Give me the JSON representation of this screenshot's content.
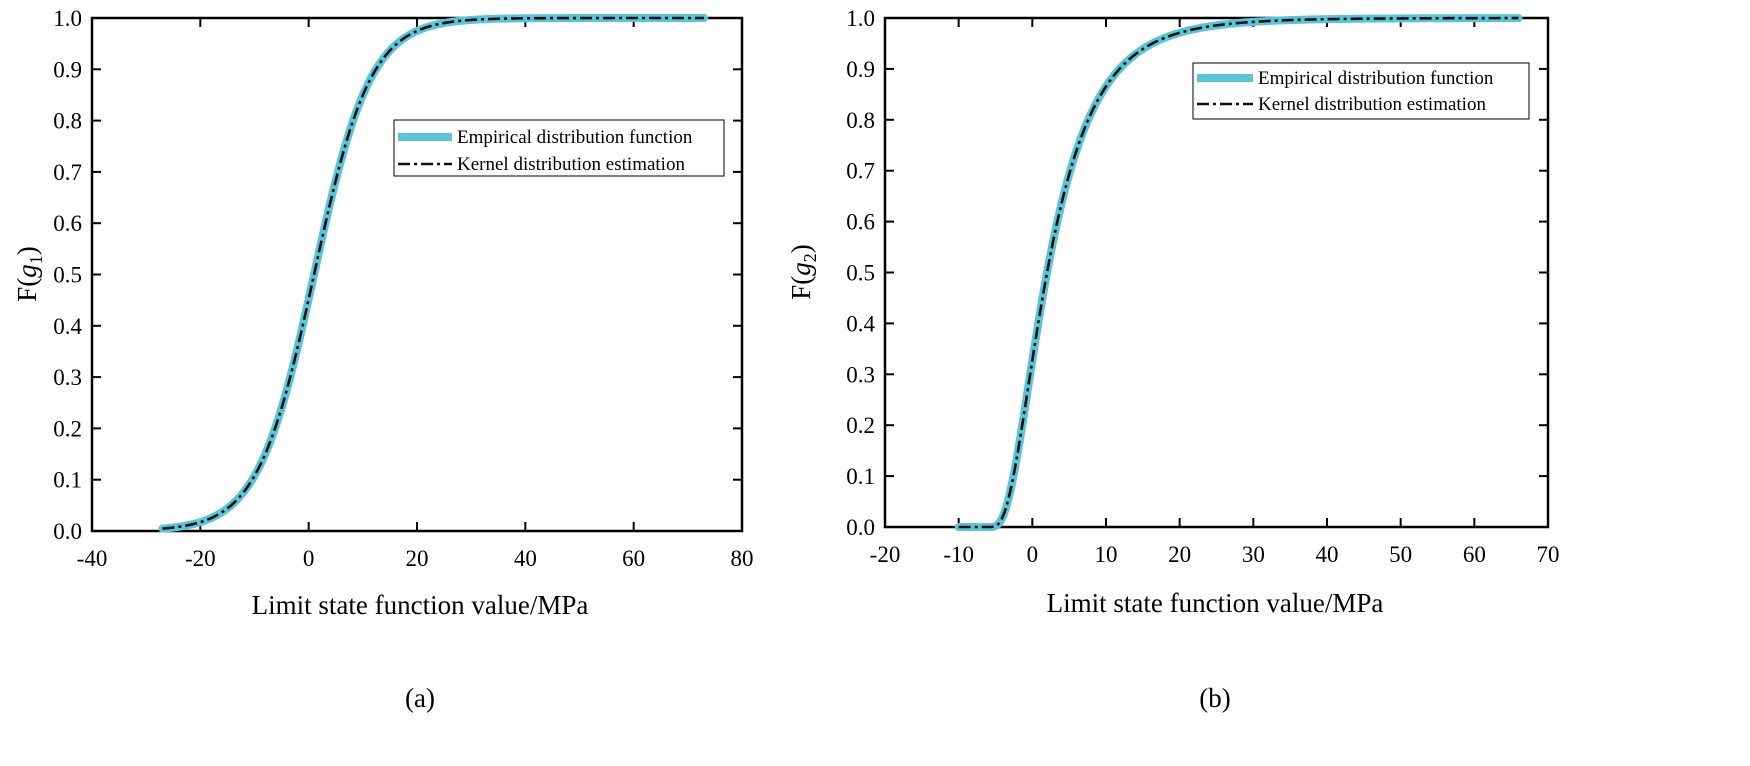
{
  "chart_data": [
    {
      "type": "line",
      "panel_label": "(a)",
      "xlabel": "Limit state function value/MPa",
      "ylabel_main": "F(",
      "ylabel_var": "g",
      "ylabel_sub": "1",
      "ylabel_close": ")",
      "xlim": [
        -40,
        80
      ],
      "ylim": [
        0.0,
        1.0
      ],
      "xticks": [
        -40,
        -20,
        0,
        20,
        40,
        60,
        80
      ],
      "xtick_labels": [
        "-40",
        "-20",
        "0",
        "20",
        "40",
        "60",
        "80"
      ],
      "yticks": [
        0.0,
        0.1,
        0.2,
        0.3,
        0.4,
        0.5,
        0.6,
        0.7,
        0.8,
        0.9,
        1.0
      ],
      "ytick_labels": [
        "0.0",
        "0.1",
        "0.2",
        "0.3",
        "0.4",
        "0.5",
        "0.6",
        "0.7",
        "0.8",
        "0.9",
        "1.0"
      ],
      "legend_position": "upper-right",
      "x_start": -27,
      "x_end": 73,
      "curve_mu": 1,
      "curve_s": 5.2,
      "series": [
        {
          "name": "Empirical distribution function",
          "style": "thick-solid",
          "color": "#5bc4d6"
        },
        {
          "name": "Kernel distribution estimation",
          "style": "dash-dot",
          "color": "#111111"
        }
      ]
    },
    {
      "type": "line",
      "panel_label": "(b)",
      "xlabel": "Limit state function value/MPa",
      "ylabel_main": "F(",
      "ylabel_var": "g",
      "ylabel_sub": "2",
      "ylabel_close": ")",
      "xlim": [
        -20,
        70
      ],
      "ylim": [
        0.0,
        1.0
      ],
      "xticks": [
        -20,
        -10,
        0,
        10,
        20,
        30,
        40,
        50,
        60,
        70
      ],
      "xtick_labels": [
        "-20",
        "-10",
        "0",
        "10",
        "20",
        "30",
        "40",
        "50",
        "60",
        "70"
      ],
      "yticks": [
        0.0,
        0.1,
        0.2,
        0.3,
        0.4,
        0.5,
        0.6,
        0.7,
        0.8,
        0.9,
        1.0
      ],
      "ytick_labels": [
        "0.0",
        "0.1",
        "0.2",
        "0.3",
        "0.4",
        "0.5",
        "0.6",
        "0.7",
        "0.8",
        "0.9",
        "1.0"
      ],
      "legend_position": "upper-right",
      "x_start": -10,
      "x_end": 66,
      "curve_shift": -6.5,
      "curve_median": 8.5,
      "curve_sigma": 0.6,
      "series": [
        {
          "name": "Empirical distribution function",
          "style": "thick-solid",
          "color": "#5bc4d6"
        },
        {
          "name": "Kernel distribution estimation",
          "style": "dash-dot",
          "color": "#111111"
        }
      ]
    }
  ]
}
